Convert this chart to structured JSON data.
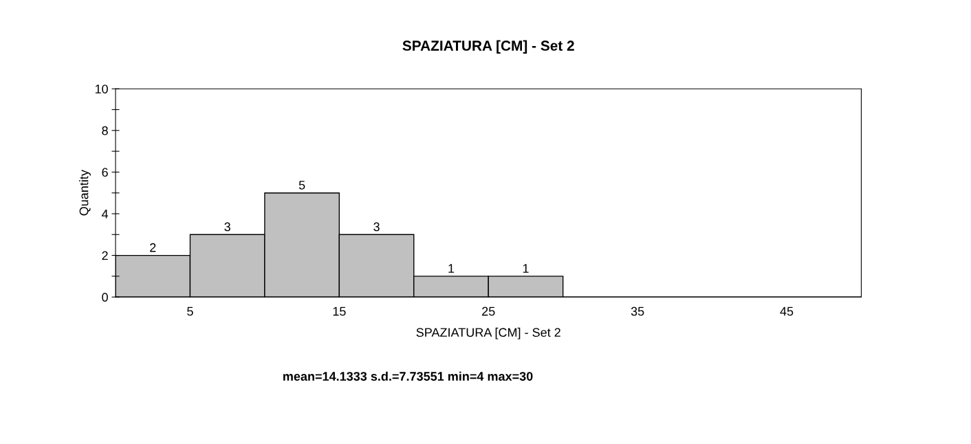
{
  "chart_data": {
    "type": "histogram",
    "title": "SPAZIATURA [CM] - Set 2",
    "xlabel": "SPAZIATURA [CM] - Set 2",
    "ylabel": "Quantity",
    "bins": [
      0,
      5,
      10,
      15,
      20,
      25,
      30,
      35,
      40,
      45,
      50
    ],
    "values": [
      2,
      3,
      5,
      3,
      1,
      1,
      0,
      0,
      0,
      0
    ],
    "value_labels": [
      "2",
      "3",
      "5",
      "3",
      "1",
      "1",
      null,
      null,
      null,
      null
    ],
    "color": "#c0c0c0",
    "xlim": [
      0,
      50
    ],
    "xticks": [
      5,
      15,
      25,
      35,
      45
    ],
    "ylim": [
      0,
      10
    ],
    "yticks": [
      0,
      {
        "value": 1,
        "label": null
      },
      2,
      {
        "value": 3,
        "label": null
      },
      4,
      {
        "value": 5,
        "label": null
      },
      6,
      {
        "value": 7,
        "label": null
      },
      8,
      {
        "value": 9,
        "label": null
      },
      10
    ],
    "grid": false,
    "legend": false,
    "annotations": [
      "mean=14.1333 s.d.=7.73551 min=4 max=30"
    ]
  }
}
